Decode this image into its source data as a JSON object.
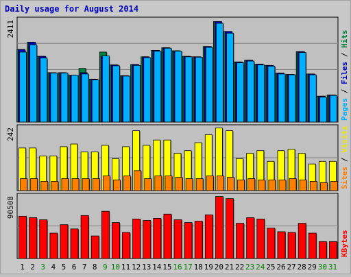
{
  "chart_data": {
    "type": "bar",
    "title": "Daily usage for August 2014",
    "categories": [
      "1",
      "2",
      "3",
      "4",
      "5",
      "6",
      "7",
      "8",
      "9",
      "10",
      "11",
      "12",
      "13",
      "14",
      "15",
      "16",
      "17",
      "18",
      "19",
      "20",
      "21",
      "22",
      "23",
      "24",
      "25",
      "26",
      "27",
      "28",
      "29",
      "30",
      "31"
    ],
    "weekend_days": [
      "3",
      "9",
      "10",
      "16",
      "17",
      "23",
      "24",
      "30",
      "31"
    ],
    "panels": [
      {
        "id": "top",
        "max_label": "2411",
        "ylim": [
          0,
          2411
        ],
        "legend": [
          {
            "text": "Hits",
            "color": "#008040"
          },
          {
            "text": "Files",
            "color": "#0000c0"
          },
          {
            "text": "Pages",
            "color": "#00b0ff"
          }
        ],
        "series": [
          {
            "name": "Hits",
            "color": "#008040",
            "values": [
              1690,
              1860,
              1530,
              1150,
              1150,
              1090,
              1250,
              1000,
              1630,
              1330,
              1080,
              1340,
              1520,
              1670,
              1730,
              1660,
              1530,
              1520,
              1760,
              2340,
              2110,
              1400,
              1440,
              1350,
              1320,
              1140,
              1110,
              1640,
              1120,
              600,
              630
            ]
          },
          {
            "name": "Files",
            "color": "#0000c0",
            "values": [
              1690,
              1860,
              1530,
              1150,
              1150,
              1090,
              1150,
              1000,
              1530,
              1330,
              1080,
              1340,
              1520,
              1670,
              1730,
              1660,
              1530,
              1520,
              1760,
              2340,
              2110,
              1400,
              1440,
              1350,
              1320,
              1140,
              1110,
              1640,
              1120,
              600,
              630
            ]
          },
          {
            "name": "Pages",
            "color": "#00b0ff",
            "values": [
              1630,
              1800,
              1490,
              1140,
              1140,
              1090,
              1120,
              980,
              1540,
              1310,
              1070,
              1320,
              1500,
              1650,
              1720,
              1650,
              1520,
              1510,
              1740,
              2300,
              2070,
              1380,
              1420,
              1330,
              1300,
              1120,
              1100,
              1620,
              1100,
              580,
              620
            ]
          }
        ]
      },
      {
        "id": "mid",
        "max_label": "242",
        "ylim": [
          0,
          242
        ],
        "legend": [
          {
            "text": "Visits",
            "color": "#e8e800"
          },
          {
            "text": "Sites",
            "color": "#ff8000"
          }
        ],
        "series": [
          {
            "name": "Visits",
            "color": "#ffff00",
            "values": [
              160,
              160,
              130,
              130,
              165,
              175,
              145,
              145,
              170,
              120,
              165,
              225,
              170,
              190,
              190,
              140,
              150,
              180,
              210,
              235,
              225,
              120,
              140,
              150,
              110,
              150,
              155,
              140,
              100,
              110,
              110
            ]
          },
          {
            "name": "Sites",
            "color": "#ff8000",
            "values": [
              45,
              45,
              35,
              35,
              45,
              45,
              45,
              45,
              55,
              40,
              55,
              75,
              45,
              55,
              55,
              50,
              45,
              45,
              55,
              55,
              50,
              40,
              45,
              40,
              40,
              40,
              45,
              40,
              35,
              30,
              35
            ]
          }
        ]
      },
      {
        "id": "bot",
        "max_label": "90508",
        "ylim": [
          0,
          90508
        ],
        "legend": [
          {
            "text": "KBytes",
            "color": "#ff0000"
          }
        ],
        "series": [
          {
            "name": "KBytes",
            "color": "#ff0000",
            "values": [
              60000,
              58000,
              55000,
              36000,
              48000,
              42000,
              61000,
              32000,
              67000,
              51000,
              37000,
              56000,
              54000,
              57000,
              63000,
              55000,
              51000,
              53000,
              62000,
              88000,
              85000,
              50000,
              58000,
              56000,
              43000,
              38000,
              37000,
              50000,
              36000,
              24000,
              24000
            ]
          }
        ]
      }
    ]
  }
}
